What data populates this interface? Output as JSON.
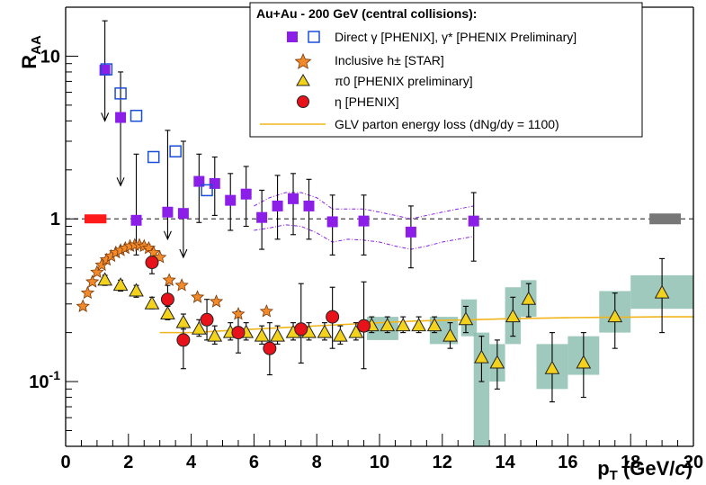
{
  "chart_data": {
    "type": "scatter",
    "title": "",
    "xlabel": {
      "main": "p",
      "sub": "T",
      "unit_pre": " (GeV/",
      "unit_italic": "c",
      "unit_post": ")"
    },
    "ylabel": {
      "main": "R",
      "sub": "AA"
    },
    "xlim": [
      0,
      20
    ],
    "ylim": [
      0.04,
      20
    ],
    "y_scale": "log",
    "x_ticks": [
      "0",
      "2",
      "4",
      "6",
      "8",
      "10",
      "12",
      "14",
      "16",
      "18",
      "20"
    ],
    "y_ticks": [
      {
        "value": 0.1,
        "base": "10",
        "exp": "-1"
      },
      {
        "value": 1,
        "base": "1",
        "exp": ""
      },
      {
        "value": 10,
        "base": "10",
        "exp": ""
      }
    ],
    "reference_line": 1,
    "legend": {
      "placement": "top-right",
      "title": "Au+Au - 200 GeV (central collisions):",
      "entries": [
        {
          "key": "direct",
          "label": "Direct γ [PHENIX], γ* [PHENIX Preliminary]"
        },
        {
          "key": "inclusive",
          "label": "Inclusive h± [STAR]"
        },
        {
          "key": "pi0",
          "label": "π0 [PHENIX preliminary]"
        },
        {
          "key": "eta",
          "label": "η [PHENIX]"
        },
        {
          "key": "glv",
          "label": "GLV parton energy loss (dNg/dy = 1100)"
        }
      ]
    },
    "colors": {
      "direct": "#8b1fe8",
      "inclusive": "#f28a2a",
      "pi0": "#f2d21c",
      "eta": "#e8121a",
      "glv": "#f2b61c",
      "band": "#8fbfb2",
      "norm_red": "#ff1a1a",
      "norm_gray": "#777777"
    },
    "series": [
      {
        "name": "Direct γ [PHENIX]",
        "marker": "square-filled",
        "points": [
          {
            "x": 1.25,
            "y": 8.2,
            "up": 16.5,
            "dn": 4.0,
            "arrow": true
          },
          {
            "x": 1.75,
            "y": 4.2,
            "up": 8.0,
            "dn": 1.6,
            "arrow": true
          },
          {
            "x": 2.25,
            "y": 0.98,
            "up": 2.5,
            "dn": 0.6,
            "arrow": false
          },
          {
            "x": 3.25,
            "y": 1.1,
            "up": 3.5,
            "dn": 0.75,
            "arrow": true
          },
          {
            "x": 3.75,
            "y": 1.08,
            "up": 3.0,
            "dn": 0.58,
            "arrow": true
          },
          {
            "x": 4.25,
            "y": 1.7,
            "up": 2.5,
            "dn": 0.95,
            "arrow": false
          },
          {
            "x": 4.75,
            "y": 1.65,
            "up": 2.4,
            "dn": 1.05,
            "arrow": false
          },
          {
            "x": 5.25,
            "y": 1.3,
            "up": 1.9,
            "dn": 0.85,
            "arrow": false
          },
          {
            "x": 5.75,
            "y": 1.42,
            "up": 2.1,
            "dn": 0.9,
            "arrow": false
          },
          {
            "x": 6.25,
            "y": 1.02,
            "up": 1.5,
            "dn": 0.65,
            "arrow": false
          },
          {
            "x": 6.75,
            "y": 1.2,
            "up": 1.85,
            "dn": 0.75,
            "arrow": false
          },
          {
            "x": 7.25,
            "y": 1.33,
            "up": 1.9,
            "dn": 0.8,
            "arrow": false
          },
          {
            "x": 7.75,
            "y": 1.2,
            "up": 1.75,
            "dn": 0.75,
            "arrow": false
          },
          {
            "x": 8.5,
            "y": 0.96,
            "up": 1.4,
            "dn": 0.6,
            "arrow": false
          },
          {
            "x": 9.5,
            "y": 0.97,
            "up": 1.4,
            "dn": 0.6,
            "arrow": false
          },
          {
            "x": 11.0,
            "y": 0.83,
            "up": 1.2,
            "dn": 0.5,
            "arrow": false
          },
          {
            "x": 13.0,
            "y": 0.97,
            "up": 1.45,
            "dn": 0.55,
            "arrow": false
          }
        ]
      },
      {
        "name": "γ* [PHENIX Preliminary]",
        "marker": "square-open",
        "points": [
          {
            "x": 1.3,
            "y": 8.3
          },
          {
            "x": 1.75,
            "y": 5.9
          },
          {
            "x": 2.25,
            "y": 4.3
          },
          {
            "x": 2.8,
            "y": 2.4
          },
          {
            "x": 3.5,
            "y": 2.6
          },
          {
            "x": 4.5,
            "y": 1.5
          }
        ]
      },
      {
        "name": "Inclusive h± [STAR]",
        "marker": "star",
        "points": [
          {
            "x": 0.55,
            "y": 0.29
          },
          {
            "x": 0.7,
            "y": 0.35
          },
          {
            "x": 0.85,
            "y": 0.41
          },
          {
            "x": 1.0,
            "y": 0.47
          },
          {
            "x": 1.15,
            "y": 0.52
          },
          {
            "x": 1.3,
            "y": 0.56
          },
          {
            "x": 1.45,
            "y": 0.59
          },
          {
            "x": 1.6,
            "y": 0.62
          },
          {
            "x": 1.75,
            "y": 0.64
          },
          {
            "x": 1.9,
            "y": 0.66
          },
          {
            "x": 2.05,
            "y": 0.68
          },
          {
            "x": 2.2,
            "y": 0.69
          },
          {
            "x": 2.35,
            "y": 0.69
          },
          {
            "x": 2.5,
            "y": 0.68
          },
          {
            "x": 2.65,
            "y": 0.66
          },
          {
            "x": 2.8,
            "y": 0.62
          },
          {
            "x": 3.0,
            "y": 0.58
          },
          {
            "x": 3.3,
            "y": 0.42
          },
          {
            "x": 3.7,
            "y": 0.39
          },
          {
            "x": 4.2,
            "y": 0.33
          },
          {
            "x": 4.8,
            "y": 0.31
          },
          {
            "x": 5.5,
            "y": 0.26
          },
          {
            "x": 6.4,
            "y": 0.27
          }
        ]
      },
      {
        "name": "π0 [PHENIX preliminary]",
        "marker": "triangle",
        "points": [
          {
            "x": 1.25,
            "y": 0.42,
            "up": 0.45,
            "dn": 0.39
          },
          {
            "x": 1.75,
            "y": 0.39,
            "up": 0.42,
            "dn": 0.36
          },
          {
            "x": 2.25,
            "y": 0.36,
            "up": 0.39,
            "dn": 0.33
          },
          {
            "x": 2.75,
            "y": 0.3,
            "up": 0.33,
            "dn": 0.28
          },
          {
            "x": 3.25,
            "y": 0.26,
            "up": 0.29,
            "dn": 0.24
          },
          {
            "x": 3.75,
            "y": 0.23,
            "up": 0.26,
            "dn": 0.21
          },
          {
            "x": 4.25,
            "y": 0.21,
            "up": 0.24,
            "dn": 0.19
          },
          {
            "x": 4.75,
            "y": 0.19,
            "up": 0.22,
            "dn": 0.17
          },
          {
            "x": 5.25,
            "y": 0.2,
            "up": 0.23,
            "dn": 0.18
          },
          {
            "x": 5.75,
            "y": 0.2,
            "up": 0.23,
            "dn": 0.18
          },
          {
            "x": 6.25,
            "y": 0.19,
            "up": 0.22,
            "dn": 0.17
          },
          {
            "x": 6.75,
            "y": 0.19,
            "up": 0.22,
            "dn": 0.17
          },
          {
            "x": 7.25,
            "y": 0.2,
            "up": 0.23,
            "dn": 0.18
          },
          {
            "x": 7.75,
            "y": 0.2,
            "up": 0.23,
            "dn": 0.18
          },
          {
            "x": 8.25,
            "y": 0.2,
            "up": 0.23,
            "dn": 0.18
          },
          {
            "x": 8.75,
            "y": 0.19,
            "up": 0.22,
            "dn": 0.17
          },
          {
            "x": 9.25,
            "y": 0.2,
            "up": 0.23,
            "dn": 0.18
          },
          {
            "x": 9.75,
            "y": 0.22,
            "up": 0.25,
            "dn": 0.2
          },
          {
            "x": 10.25,
            "y": 0.22,
            "up": 0.25,
            "dn": 0.2
          },
          {
            "x": 10.75,
            "y": 0.22,
            "up": 0.25,
            "dn": 0.2
          },
          {
            "x": 11.25,
            "y": 0.22,
            "up": 0.25,
            "dn": 0.2
          },
          {
            "x": 11.75,
            "y": 0.22,
            "up": 0.25,
            "dn": 0.2
          },
          {
            "x": 12.25,
            "y": 0.19,
            "up": 0.23,
            "dn": 0.16
          },
          {
            "x": 12.75,
            "y": 0.24,
            "up": 0.29,
            "dn": 0.2
          },
          {
            "x": 13.25,
            "y": 0.14,
            "up": 0.19,
            "dn": 0.1
          },
          {
            "x": 13.75,
            "y": 0.13,
            "up": 0.18,
            "dn": 0.09
          },
          {
            "x": 14.25,
            "y": 0.25,
            "up": 0.33,
            "dn": 0.19
          },
          {
            "x": 14.75,
            "y": 0.32,
            "up": 0.4,
            "dn": 0.25
          },
          {
            "x": 15.5,
            "y": 0.12,
            "up": 0.2,
            "dn": 0.075
          },
          {
            "x": 16.5,
            "y": 0.13,
            "up": 0.2,
            "dn": 0.08
          },
          {
            "x": 17.5,
            "y": 0.25,
            "up": 0.35,
            "dn": 0.16
          },
          {
            "x": 19.0,
            "y": 0.35,
            "up": 0.57,
            "dn": 0.2
          }
        ],
        "sys_bands": [
          {
            "x0": 9.6,
            "x1": 10.6,
            "lo": 0.18,
            "hi": 0.25
          },
          {
            "x0": 11.6,
            "x1": 12.5,
            "lo": 0.17,
            "hi": 0.25
          },
          {
            "x0": 12.6,
            "x1": 13.1,
            "lo": 0.19,
            "hi": 0.32
          },
          {
            "x0": 13.0,
            "x1": 13.5,
            "lo": 0.04,
            "hi": 0.2
          },
          {
            "x0": 13.5,
            "x1": 14.0,
            "lo": 0.1,
            "hi": 0.17
          },
          {
            "x0": 14.0,
            "x1": 14.5,
            "lo": 0.17,
            "hi": 0.38
          },
          {
            "x0": 14.5,
            "x1": 15.0,
            "lo": 0.25,
            "hi": 0.42
          },
          {
            "x0": 15.0,
            "x1": 16.0,
            "lo": 0.09,
            "hi": 0.17
          },
          {
            "x0": 16.0,
            "x1": 17.0,
            "lo": 0.11,
            "hi": 0.19
          },
          {
            "x0": 17.0,
            "x1": 18.0,
            "lo": 0.2,
            "hi": 0.36
          },
          {
            "x0": 18.0,
            "x1": 20.0,
            "lo": 0.28,
            "hi": 0.45
          }
        ]
      },
      {
        "name": "η [PHENIX]",
        "marker": "circle",
        "points": [
          {
            "x": 2.75,
            "y": 0.54,
            "up": 0.63,
            "dn": 0.46
          },
          {
            "x": 3.25,
            "y": 0.32,
            "up": 0.39,
            "dn": 0.27
          },
          {
            "x": 3.75,
            "y": 0.18,
            "up": 0.24,
            "dn": 0.12
          },
          {
            "x": 4.5,
            "y": 0.24,
            "up": 0.32,
            "dn": 0.18
          },
          {
            "x": 5.5,
            "y": 0.2,
            "up": 0.27,
            "dn": 0.15
          },
          {
            "x": 6.5,
            "y": 0.16,
            "up": 0.23,
            "dn": 0.11
          },
          {
            "x": 7.5,
            "y": 0.21,
            "up": 0.4,
            "dn": 0.13
          },
          {
            "x": 8.5,
            "y": 0.25,
            "up": 0.38,
            "dn": 0.16
          },
          {
            "x": 9.5,
            "y": 0.22,
            "up": 0.41,
            "dn": 0.12
          }
        ]
      },
      {
        "name": "GLV parton energy loss (dNg/dy = 1100)",
        "marker": "line",
        "x": [
          3,
          4,
          5,
          6,
          7,
          8,
          9,
          10,
          11,
          12,
          13,
          14,
          15,
          16,
          17,
          18,
          19,
          20
        ],
        "y": [
          0.2,
          0.2,
          0.205,
          0.21,
          0.215,
          0.22,
          0.225,
          0.23,
          0.235,
          0.238,
          0.24,
          0.243,
          0.245,
          0.247,
          0.248,
          0.249,
          0.25,
          0.25
        ]
      }
    ],
    "direct_sys_envelope": {
      "x": [
        6.0,
        6.5,
        7.0,
        7.5,
        8.0,
        8.5,
        9.0,
        9.5,
        10.0,
        10.5,
        11.0,
        11.5,
        12.0,
        12.5,
        13.0
      ],
      "upper": [
        1.2,
        1.35,
        1.45,
        1.45,
        1.35,
        1.15,
        1.15,
        1.15,
        1.1,
        1.05,
        1.0,
        1.05,
        1.1,
        1.15,
        1.2
      ],
      "lower": [
        0.85,
        0.88,
        0.92,
        0.9,
        0.82,
        0.72,
        0.75,
        0.74,
        0.72,
        0.68,
        0.65,
        0.68,
        0.72,
        0.75,
        0.78
      ]
    }
  }
}
